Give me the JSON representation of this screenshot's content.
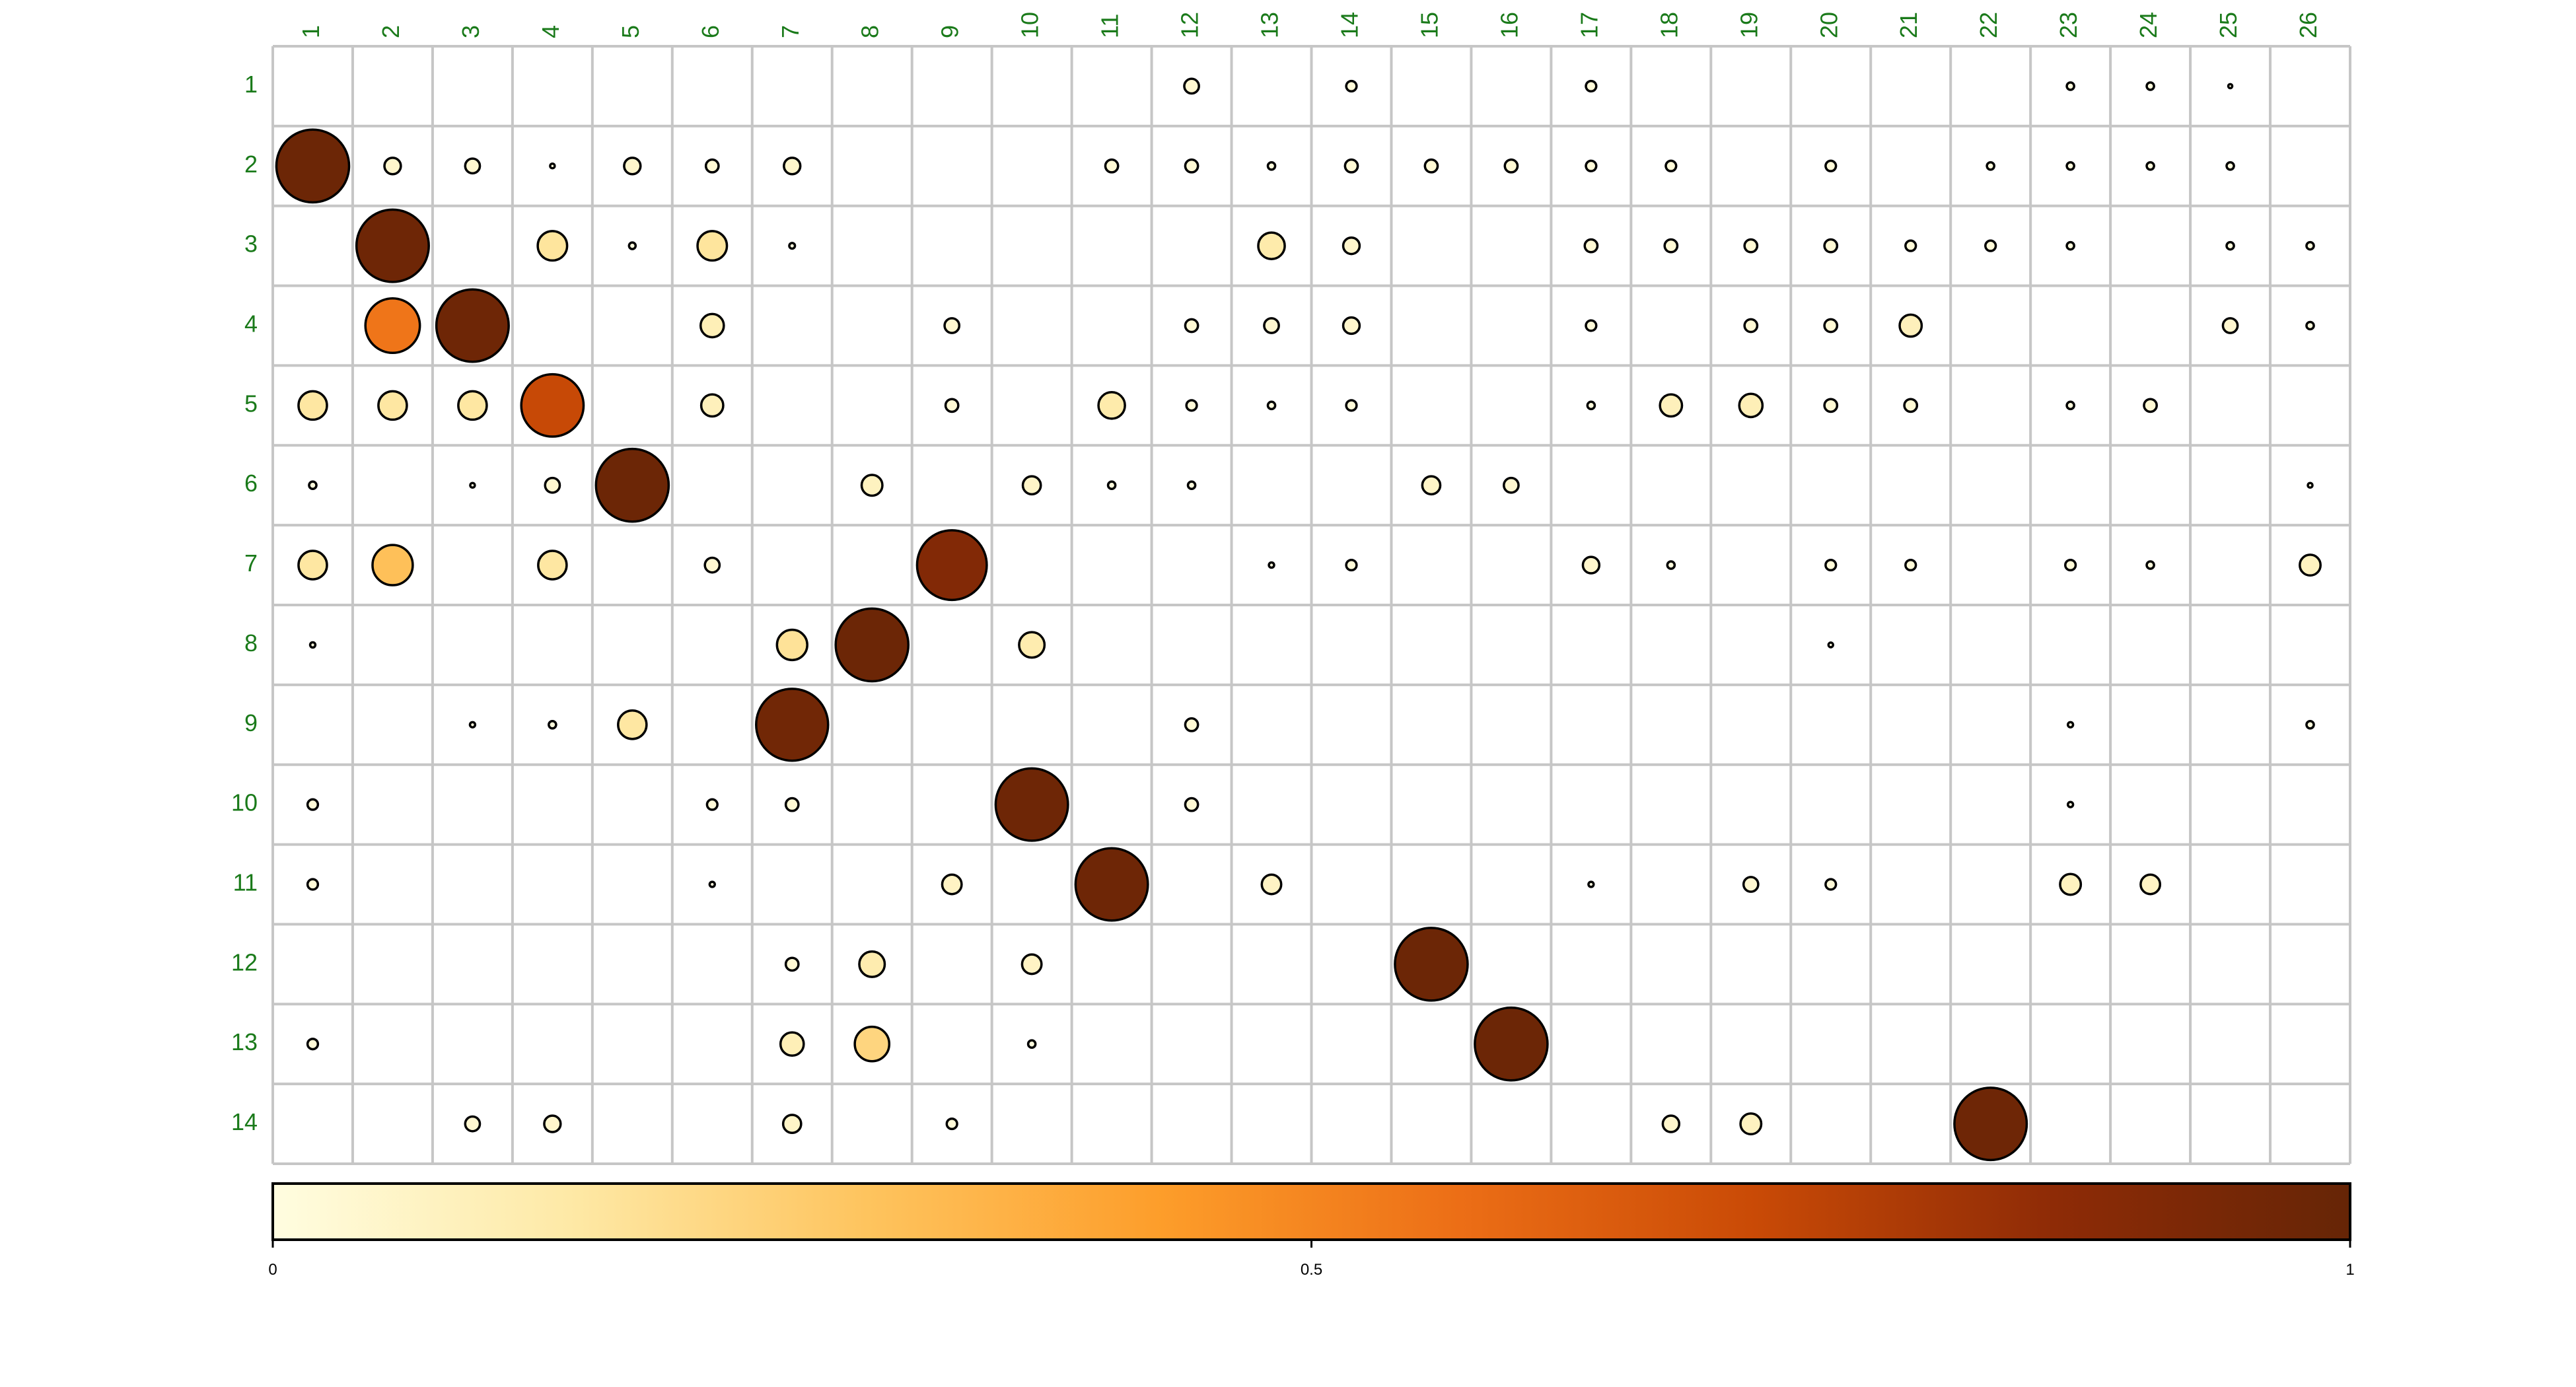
{
  "chart_data": {
    "type": "bubble-matrix",
    "title": "",
    "xlabel": "",
    "ylabel": "",
    "columns": [
      "1",
      "2",
      "3",
      "4",
      "5",
      "6",
      "7",
      "8",
      "9",
      "10",
      "11",
      "12",
      "13",
      "14",
      "15",
      "16",
      "17",
      "18",
      "19",
      "20",
      "21",
      "22",
      "23",
      "24",
      "25",
      "26"
    ],
    "rows": [
      "1",
      "2",
      "3",
      "4",
      "5",
      "6",
      "7",
      "8",
      "9",
      "10",
      "11",
      "12",
      "13",
      "14"
    ],
    "value_range": [
      0,
      1
    ],
    "colorbar": {
      "ticks": [
        0,
        0.5,
        1
      ],
      "tick_labels": [
        "0",
        "0.5",
        "1"
      ],
      "colors": [
        "#fffde0",
        "#fee9a6",
        "#fec45e",
        "#fd9d2a",
        "#ec6e16",
        "#c94a06",
        "#8e2b06",
        "#662506"
      ]
    },
    "points": [
      {
        "row": 1,
        "col": 12,
        "value": 0.04
      },
      {
        "row": 1,
        "col": 14,
        "value": 0.02
      },
      {
        "row": 1,
        "col": 17,
        "value": 0.02
      },
      {
        "row": 1,
        "col": 23,
        "value": 0.01
      },
      {
        "row": 1,
        "col": 24,
        "value": 0.01
      },
      {
        "row": 1,
        "col": 25,
        "value": 0.003
      },
      {
        "row": 2,
        "col": 1,
        "value": 0.98
      },
      {
        "row": 2,
        "col": 2,
        "value": 0.05
      },
      {
        "row": 2,
        "col": 3,
        "value": 0.04
      },
      {
        "row": 2,
        "col": 4,
        "value": 0.004
      },
      {
        "row": 2,
        "col": 5,
        "value": 0.05
      },
      {
        "row": 2,
        "col": 6,
        "value": 0.03
      },
      {
        "row": 2,
        "col": 7,
        "value": 0.05
      },
      {
        "row": 2,
        "col": 11,
        "value": 0.03
      },
      {
        "row": 2,
        "col": 12,
        "value": 0.03
      },
      {
        "row": 2,
        "col": 13,
        "value": 0.01
      },
      {
        "row": 2,
        "col": 14,
        "value": 0.03
      },
      {
        "row": 2,
        "col": 15,
        "value": 0.03
      },
      {
        "row": 2,
        "col": 16,
        "value": 0.03
      },
      {
        "row": 2,
        "col": 17,
        "value": 0.02
      },
      {
        "row": 2,
        "col": 18,
        "value": 0.02
      },
      {
        "row": 2,
        "col": 20,
        "value": 0.02
      },
      {
        "row": 2,
        "col": 22,
        "value": 0.01
      },
      {
        "row": 2,
        "col": 23,
        "value": 0.01
      },
      {
        "row": 2,
        "col": 24,
        "value": 0.01
      },
      {
        "row": 2,
        "col": 25,
        "value": 0.01
      },
      {
        "row": 3,
        "col": 2,
        "value": 0.97
      },
      {
        "row": 3,
        "col": 4,
        "value": 0.16
      },
      {
        "row": 3,
        "col": 5,
        "value": 0.008
      },
      {
        "row": 3,
        "col": 6,
        "value": 0.16
      },
      {
        "row": 3,
        "col": 7,
        "value": 0.006
      },
      {
        "row": 3,
        "col": 13,
        "value": 0.13
      },
      {
        "row": 3,
        "col": 14,
        "value": 0.05
      },
      {
        "row": 3,
        "col": 17,
        "value": 0.03
      },
      {
        "row": 3,
        "col": 18,
        "value": 0.03
      },
      {
        "row": 3,
        "col": 19,
        "value": 0.03
      },
      {
        "row": 3,
        "col": 20,
        "value": 0.03
      },
      {
        "row": 3,
        "col": 21,
        "value": 0.02
      },
      {
        "row": 3,
        "col": 22,
        "value": 0.02
      },
      {
        "row": 3,
        "col": 23,
        "value": 0.01
      },
      {
        "row": 3,
        "col": 25,
        "value": 0.01
      },
      {
        "row": 3,
        "col": 26,
        "value": 0.01
      },
      {
        "row": 4,
        "col": 2,
        "value": 0.55
      },
      {
        "row": 4,
        "col": 3,
        "value": 0.97
      },
      {
        "row": 4,
        "col": 6,
        "value": 0.1
      },
      {
        "row": 4,
        "col": 9,
        "value": 0.04
      },
      {
        "row": 4,
        "col": 12,
        "value": 0.03
      },
      {
        "row": 4,
        "col": 13,
        "value": 0.04
      },
      {
        "row": 4,
        "col": 14,
        "value": 0.05
      },
      {
        "row": 4,
        "col": 17,
        "value": 0.02
      },
      {
        "row": 4,
        "col": 19,
        "value": 0.03
      },
      {
        "row": 4,
        "col": 20,
        "value": 0.03
      },
      {
        "row": 4,
        "col": 21,
        "value": 0.09
      },
      {
        "row": 4,
        "col": 25,
        "value": 0.04
      },
      {
        "row": 4,
        "col": 26,
        "value": 0.01
      },
      {
        "row": 5,
        "col": 1,
        "value": 0.15
      },
      {
        "row": 5,
        "col": 2,
        "value": 0.15
      },
      {
        "row": 5,
        "col": 3,
        "value": 0.15
      },
      {
        "row": 5,
        "col": 4,
        "value": 0.72
      },
      {
        "row": 5,
        "col": 6,
        "value": 0.09
      },
      {
        "row": 5,
        "col": 9,
        "value": 0.03
      },
      {
        "row": 5,
        "col": 11,
        "value": 0.13
      },
      {
        "row": 5,
        "col": 12,
        "value": 0.02
      },
      {
        "row": 5,
        "col": 13,
        "value": 0.01
      },
      {
        "row": 5,
        "col": 14,
        "value": 0.02
      },
      {
        "row": 5,
        "col": 17,
        "value": 0.01
      },
      {
        "row": 5,
        "col": 18,
        "value": 0.09
      },
      {
        "row": 5,
        "col": 19,
        "value": 0.1
      },
      {
        "row": 5,
        "col": 20,
        "value": 0.03
      },
      {
        "row": 5,
        "col": 21,
        "value": 0.03
      },
      {
        "row": 5,
        "col": 23,
        "value": 0.01
      },
      {
        "row": 5,
        "col": 24,
        "value": 0.03
      },
      {
        "row": 6,
        "col": 1,
        "value": 0.01
      },
      {
        "row": 6,
        "col": 3,
        "value": 0.004
      },
      {
        "row": 6,
        "col": 4,
        "value": 0.04
      },
      {
        "row": 6,
        "col": 5,
        "value": 0.98
      },
      {
        "row": 6,
        "col": 8,
        "value": 0.08
      },
      {
        "row": 6,
        "col": 10,
        "value": 0.06
      },
      {
        "row": 6,
        "col": 11,
        "value": 0.01
      },
      {
        "row": 6,
        "col": 12,
        "value": 0.01
      },
      {
        "row": 6,
        "col": 15,
        "value": 0.06
      },
      {
        "row": 6,
        "col": 16,
        "value": 0.04
      },
      {
        "row": 6,
        "col": 26,
        "value": 0.004
      },
      {
        "row": 7,
        "col": 1,
        "value": 0.15
      },
      {
        "row": 7,
        "col": 2,
        "value": 0.3
      },
      {
        "row": 7,
        "col": 4,
        "value": 0.15
      },
      {
        "row": 7,
        "col": 6,
        "value": 0.04
      },
      {
        "row": 7,
        "col": 9,
        "value": 0.9
      },
      {
        "row": 7,
        "col": 13,
        "value": 0.005
      },
      {
        "row": 7,
        "col": 14,
        "value": 0.02
      },
      {
        "row": 7,
        "col": 17,
        "value": 0.05
      },
      {
        "row": 7,
        "col": 18,
        "value": 0.01
      },
      {
        "row": 7,
        "col": 20,
        "value": 0.02
      },
      {
        "row": 7,
        "col": 21,
        "value": 0.02
      },
      {
        "row": 7,
        "col": 23,
        "value": 0.02
      },
      {
        "row": 7,
        "col": 24,
        "value": 0.01
      },
      {
        "row": 7,
        "col": 26,
        "value": 0.08
      },
      {
        "row": 8,
        "col": 1,
        "value": 0.005
      },
      {
        "row": 8,
        "col": 7,
        "value": 0.17
      },
      {
        "row": 8,
        "col": 8,
        "value": 0.98
      },
      {
        "row": 8,
        "col": 10,
        "value": 0.12
      },
      {
        "row": 8,
        "col": 20,
        "value": 0.004
      },
      {
        "row": 9,
        "col": 3,
        "value": 0.005
      },
      {
        "row": 9,
        "col": 4,
        "value": 0.01
      },
      {
        "row": 9,
        "col": 5,
        "value": 0.15
      },
      {
        "row": 9,
        "col": 7,
        "value": 0.96
      },
      {
        "row": 9,
        "col": 12,
        "value": 0.03
      },
      {
        "row": 9,
        "col": 23,
        "value": 0.005
      },
      {
        "row": 9,
        "col": 26,
        "value": 0.01
      },
      {
        "row": 10,
        "col": 1,
        "value": 0.02
      },
      {
        "row": 10,
        "col": 6,
        "value": 0.02
      },
      {
        "row": 10,
        "col": 7,
        "value": 0.03
      },
      {
        "row": 10,
        "col": 10,
        "value": 0.97
      },
      {
        "row": 10,
        "col": 12,
        "value": 0.03
      },
      {
        "row": 10,
        "col": 23,
        "value": 0.005
      },
      {
        "row": 11,
        "col": 1,
        "value": 0.02
      },
      {
        "row": 11,
        "col": 6,
        "value": 0.005
      },
      {
        "row": 11,
        "col": 9,
        "value": 0.07
      },
      {
        "row": 11,
        "col": 11,
        "value": 0.97
      },
      {
        "row": 11,
        "col": 13,
        "value": 0.07
      },
      {
        "row": 11,
        "col": 17,
        "value": 0.005
      },
      {
        "row": 11,
        "col": 19,
        "value": 0.04
      },
      {
        "row": 11,
        "col": 20,
        "value": 0.02
      },
      {
        "row": 11,
        "col": 23,
        "value": 0.08
      },
      {
        "row": 11,
        "col": 24,
        "value": 0.07
      },
      {
        "row": 12,
        "col": 7,
        "value": 0.03
      },
      {
        "row": 12,
        "col": 8,
        "value": 0.12
      },
      {
        "row": 12,
        "col": 10,
        "value": 0.07
      },
      {
        "row": 12,
        "col": 15,
        "value": 0.98
      },
      {
        "row": 13,
        "col": 1,
        "value": 0.02
      },
      {
        "row": 13,
        "col": 7,
        "value": 0.1
      },
      {
        "row": 13,
        "col": 8,
        "value": 0.22
      },
      {
        "row": 13,
        "col": 10,
        "value": 0.01
      },
      {
        "row": 13,
        "col": 16,
        "value": 0.98
      },
      {
        "row": 14,
        "col": 3,
        "value": 0.04
      },
      {
        "row": 14,
        "col": 4,
        "value": 0.05
      },
      {
        "row": 14,
        "col": 7,
        "value": 0.06
      },
      {
        "row": 14,
        "col": 9,
        "value": 0.02
      },
      {
        "row": 14,
        "col": 18,
        "value": 0.05
      },
      {
        "row": 14,
        "col": 19,
        "value": 0.08
      },
      {
        "row": 14,
        "col": 22,
        "value": 0.97
      }
    ]
  }
}
